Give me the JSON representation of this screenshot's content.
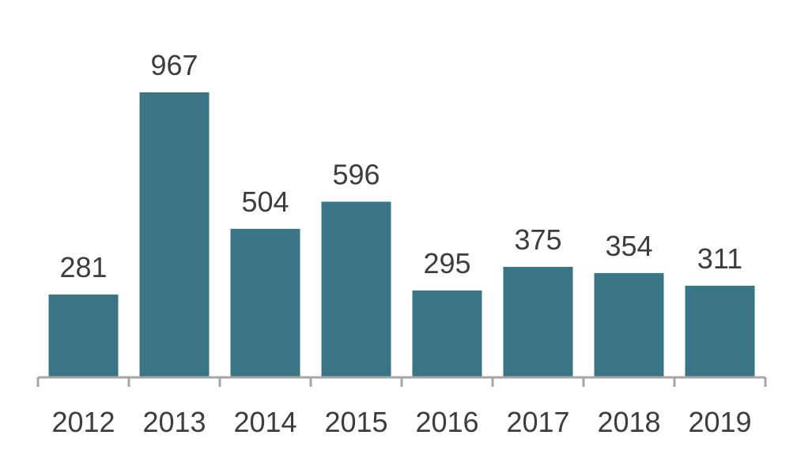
{
  "chart_data": {
    "type": "bar",
    "categories": [
      "2012",
      "2013",
      "2014",
      "2015",
      "2016",
      "2017",
      "2018",
      "2019"
    ],
    "values": [
      281,
      967,
      504,
      596,
      295,
      375,
      354,
      311
    ],
    "color": "#3a7586"
  }
}
